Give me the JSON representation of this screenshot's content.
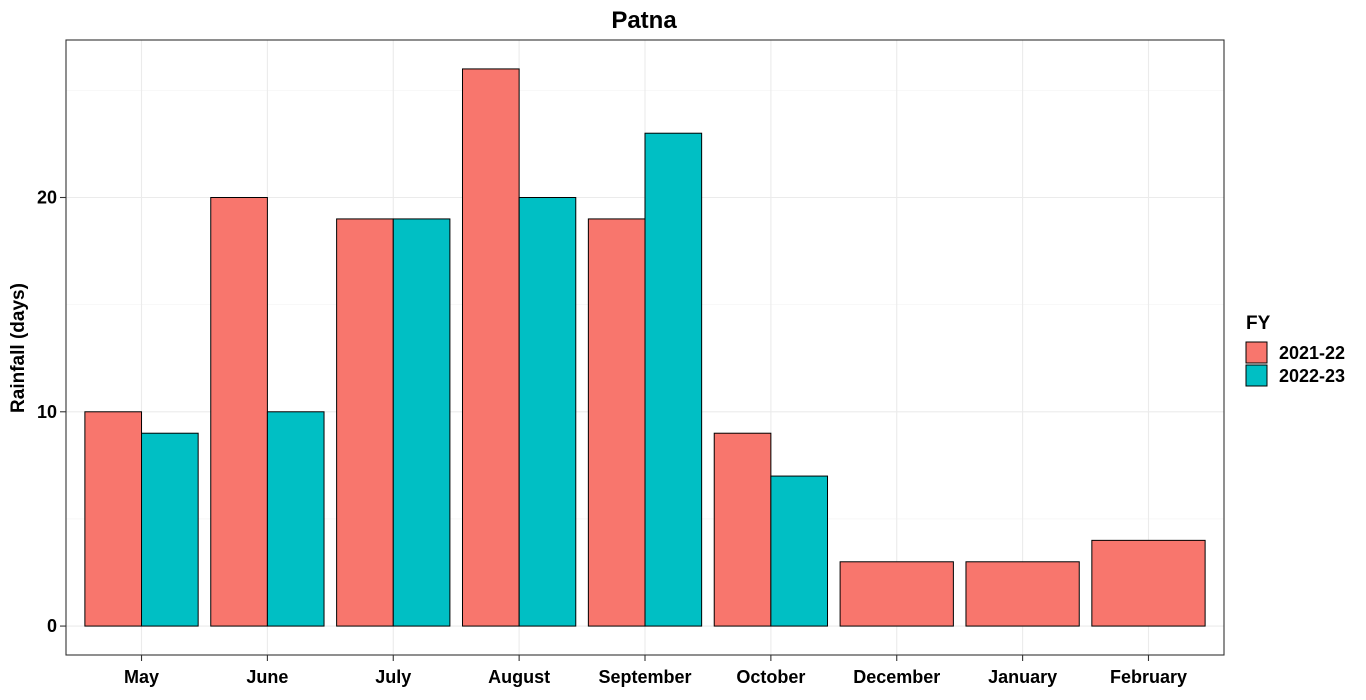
{
  "chart_data": {
    "type": "bar",
    "title": "Patna",
    "xlabel": "",
    "ylabel": "Rainfall (days)",
    "categories": [
      "May",
      "June",
      "July",
      "August",
      "September",
      "October",
      "December",
      "January",
      "February"
    ],
    "series": [
      {
        "name": "2021-22",
        "color": "#F8766D",
        "values": [
          10,
          20,
          19,
          26,
          19,
          9,
          3,
          3,
          4
        ]
      },
      {
        "name": "2022-23",
        "color": "#00BFC4",
        "values": [
          9,
          10,
          19,
          20,
          23,
          7,
          null,
          null,
          null
        ]
      }
    ],
    "yticks": [
      0,
      10,
      20
    ],
    "ylim": [
      -1.35,
      27.35
    ],
    "grid": true,
    "legend": {
      "title": "FY",
      "position": "right"
    }
  }
}
